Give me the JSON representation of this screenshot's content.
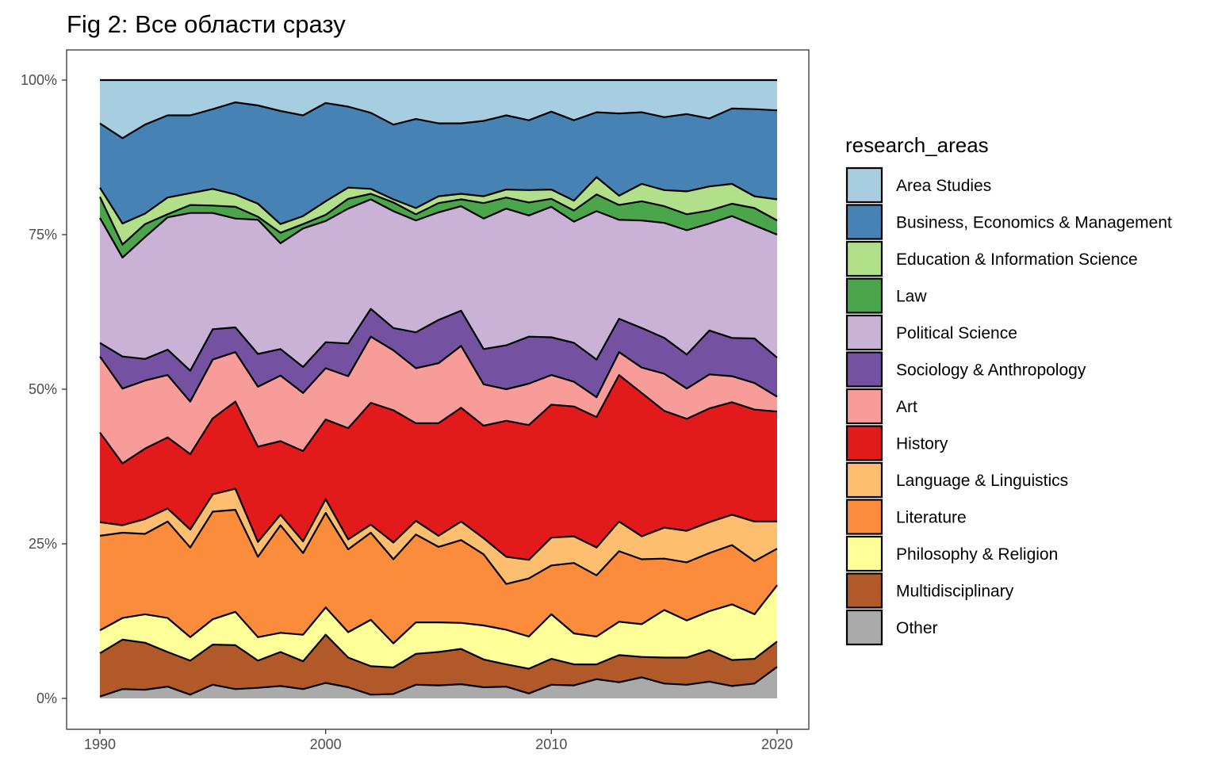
{
  "chart_data": {
    "type": "area",
    "stacked": true,
    "normalized": true,
    "title": "Fig 2: Все области сразу",
    "legend_title": "research_areas",
    "legend_position": "right",
    "grid": false,
    "xlim": [
      1990,
      2020
    ],
    "ylim": [
      0,
      1
    ],
    "x_ticks": [
      1990,
      2000,
      2010,
      2020
    ],
    "x_tick_labels": [
      "1990",
      "2000",
      "2010",
      "2020"
    ],
    "y_ticks": [
      0,
      0.25,
      0.5,
      0.75,
      1
    ],
    "y_tick_labels": [
      "0%",
      "25%",
      "50%",
      "75%",
      "100%"
    ],
    "x": [
      1990,
      1991,
      1992,
      1993,
      1994,
      1995,
      1996,
      1997,
      1998,
      1999,
      2000,
      2001,
      2002,
      2003,
      2004,
      2005,
      2006,
      2007,
      2008,
      2009,
      2010,
      2011,
      2012,
      2013,
      2014,
      2015,
      2016,
      2017,
      2018,
      2019,
      2020
    ],
    "stack_order": [
      "Other",
      "Multidisciplinary",
      "Philosophy & Religion",
      "Literature",
      "Language & Linguistics",
      "History",
      "Art",
      "Sociology & Anthropology",
      "Political Science",
      "Law",
      "Education & Information Science",
      "Business, Economics & Management",
      "Area Studies"
    ],
    "series_note_cumulative": "values below are cumulative top boundaries (fraction of total) for each series, bottom to top",
    "series": [
      {
        "name": "Other",
        "color": "#aaaaaa",
        "cumulative": [
          0.003,
          0.015,
          0.014,
          0.019,
          0.006,
          0.022,
          0.015,
          0.017,
          0.02,
          0.015,
          0.025,
          0.018,
          0.006,
          0.007,
          0.022,
          0.021,
          0.023,
          0.018,
          0.019,
          0.008,
          0.022,
          0.021,
          0.031,
          0.026,
          0.034,
          0.024,
          0.022,
          0.027,
          0.02,
          0.024,
          0.051
        ]
      },
      {
        "name": "Multidisciplinary",
        "color": "#b15928",
        "cumulative": [
          0.073,
          0.095,
          0.09,
          0.075,
          0.061,
          0.087,
          0.086,
          0.061,
          0.075,
          0.06,
          0.103,
          0.066,
          0.052,
          0.05,
          0.072,
          0.075,
          0.08,
          0.063,
          0.055,
          0.048,
          0.064,
          0.055,
          0.055,
          0.07,
          0.067,
          0.066,
          0.066,
          0.078,
          0.062,
          0.064,
          0.092
        ]
      },
      {
        "name": "Philosophy & Religion",
        "color": "#ffff99",
        "cumulative": [
          0.11,
          0.13,
          0.136,
          0.13,
          0.099,
          0.128,
          0.14,
          0.099,
          0.106,
          0.103,
          0.147,
          0.107,
          0.127,
          0.089,
          0.123,
          0.123,
          0.122,
          0.118,
          0.111,
          0.1,
          0.136,
          0.105,
          0.1,
          0.124,
          0.12,
          0.143,
          0.126,
          0.141,
          0.152,
          0.136,
          0.183
        ]
      },
      {
        "name": "Literature",
        "color": "#fb8c3c",
        "cumulative": [
          0.263,
          0.268,
          0.266,
          0.286,
          0.244,
          0.302,
          0.305,
          0.229,
          0.28,
          0.235,
          0.3,
          0.241,
          0.268,
          0.225,
          0.265,
          0.245,
          0.256,
          0.233,
          0.185,
          0.194,
          0.215,
          0.219,
          0.199,
          0.238,
          0.225,
          0.226,
          0.22,
          0.235,
          0.248,
          0.222,
          0.242
        ]
      },
      {
        "name": "Language & Linguistics",
        "color": "#fdbf6f",
        "cumulative": [
          0.285,
          0.28,
          0.29,
          0.307,
          0.273,
          0.33,
          0.339,
          0.253,
          0.297,
          0.254,
          0.322,
          0.257,
          0.281,
          0.252,
          0.287,
          0.263,
          0.286,
          0.259,
          0.229,
          0.224,
          0.26,
          0.262,
          0.244,
          0.286,
          0.262,
          0.276,
          0.271,
          0.285,
          0.297,
          0.286,
          0.286
        ]
      },
      {
        "name": "History",
        "color": "#e31a1c",
        "cumulative": [
          0.43,
          0.38,
          0.404,
          0.422,
          0.395,
          0.453,
          0.48,
          0.407,
          0.416,
          0.4,
          0.451,
          0.437,
          0.478,
          0.466,
          0.445,
          0.445,
          0.47,
          0.441,
          0.449,
          0.442,
          0.475,
          0.472,
          0.455,
          0.523,
          0.494,
          0.465,
          0.452,
          0.469,
          0.479,
          0.467,
          0.464
        ]
      },
      {
        "name": "Art",
        "color": "#f89c9a",
        "cumulative": [
          0.553,
          0.501,
          0.514,
          0.523,
          0.48,
          0.548,
          0.56,
          0.504,
          0.522,
          0.494,
          0.534,
          0.521,
          0.585,
          0.563,
          0.534,
          0.542,
          0.57,
          0.508,
          0.5,
          0.509,
          0.523,
          0.512,
          0.487,
          0.56,
          0.535,
          0.525,
          0.501,
          0.524,
          0.521,
          0.51,
          0.488
        ]
      },
      {
        "name": "Sociology & Anthropology",
        "color": "#7451a1",
        "cumulative": [
          0.575,
          0.553,
          0.549,
          0.564,
          0.53,
          0.597,
          0.6,
          0.557,
          0.565,
          0.536,
          0.576,
          0.574,
          0.63,
          0.599,
          0.592,
          0.612,
          0.627,
          0.565,
          0.571,
          0.585,
          0.584,
          0.575,
          0.548,
          0.614,
          0.599,
          0.583,
          0.556,
          0.595,
          0.583,
          0.582,
          0.551
        ]
      },
      {
        "name": "Political Science",
        "color": "#cab2d6",
        "cumulative": [
          0.777,
          0.713,
          0.746,
          0.778,
          0.785,
          0.785,
          0.776,
          0.774,
          0.736,
          0.76,
          0.772,
          0.792,
          0.807,
          0.788,
          0.773,
          0.786,
          0.796,
          0.776,
          0.792,
          0.781,
          0.795,
          0.771,
          0.788,
          0.774,
          0.773,
          0.769,
          0.757,
          0.768,
          0.78,
          0.765,
          0.75
        ]
      },
      {
        "name": "Law",
        "color": "#4ba64b",
        "cumulative": [
          0.811,
          0.734,
          0.767,
          0.783,
          0.798,
          0.797,
          0.795,
          0.779,
          0.753,
          0.767,
          0.782,
          0.808,
          0.816,
          0.802,
          0.783,
          0.801,
          0.807,
          0.801,
          0.81,
          0.802,
          0.808,
          0.789,
          0.815,
          0.798,
          0.804,
          0.796,
          0.783,
          0.789,
          0.8,
          0.793,
          0.773
        ]
      },
      {
        "name": "Education & Information Science",
        "color": "#b2df8a",
        "cumulative": [
          0.826,
          0.768,
          0.784,
          0.81,
          0.817,
          0.824,
          0.815,
          0.8,
          0.767,
          0.78,
          0.804,
          0.826,
          0.824,
          0.807,
          0.793,
          0.812,
          0.816,
          0.812,
          0.823,
          0.822,
          0.823,
          0.805,
          0.843,
          0.813,
          0.832,
          0.822,
          0.82,
          0.828,
          0.832,
          0.812,
          0.807
        ]
      },
      {
        "name": "Business, Economics & Management",
        "color": "#4682b4",
        "cumulative": [
          0.93,
          0.906,
          0.928,
          0.943,
          0.943,
          0.953,
          0.964,
          0.959,
          0.95,
          0.943,
          0.963,
          0.957,
          0.947,
          0.928,
          0.937,
          0.93,
          0.93,
          0.934,
          0.943,
          0.935,
          0.949,
          0.935,
          0.948,
          0.946,
          0.948,
          0.94,
          0.945,
          0.938,
          0.954,
          0.953,
          0.951
        ]
      },
      {
        "name": "Area Studies",
        "color": "#a6cde0",
        "cumulative": [
          1,
          1,
          1,
          1,
          1,
          1,
          1,
          1,
          1,
          1,
          1,
          1,
          1,
          1,
          1,
          1,
          1,
          1,
          1,
          1,
          1,
          1,
          1,
          1,
          1,
          1,
          1,
          1,
          1,
          1,
          1
        ]
      }
    ],
    "legend_order": [
      "Area Studies",
      "Business, Economics & Management",
      "Education & Information Science",
      "Law",
      "Political Science",
      "Sociology & Anthropology",
      "Art",
      "History",
      "Language & Linguistics",
      "Literature",
      "Philosophy & Religion",
      "Multidisciplinary",
      "Other"
    ]
  }
}
